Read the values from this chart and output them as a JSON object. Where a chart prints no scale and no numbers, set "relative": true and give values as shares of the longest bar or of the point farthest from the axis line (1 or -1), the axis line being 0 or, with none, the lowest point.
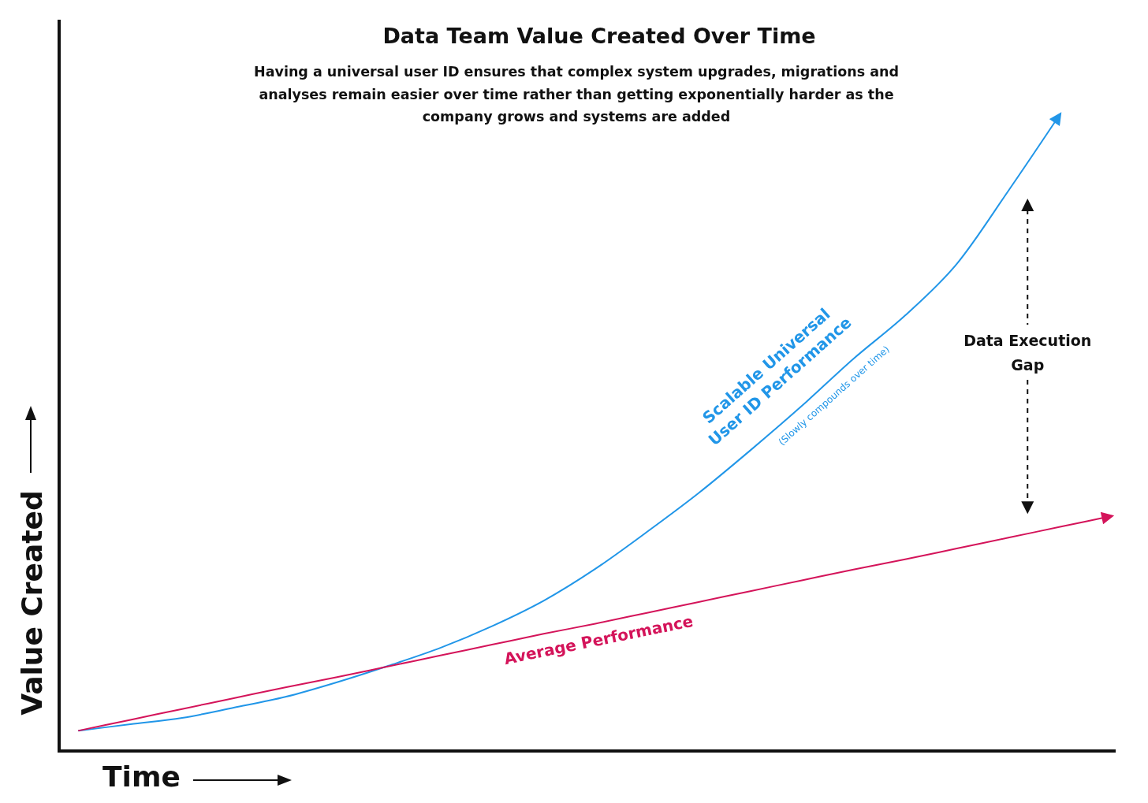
{
  "chart_data": {
    "type": "line",
    "title": "Data Team Value Created Over Time",
    "subtitle": "Having a universal user ID ensures that complex system upgrades, migrations and analyses remain easier over time rather than getting exponentially harder as the company grows and systems are added",
    "xlabel": "Time",
    "ylabel": "Value Created",
    "relative": true,
    "annotations": [
      "Data Execution Gap",
      "(Slowly compounds over time)"
    ],
    "categories": [
      null,
      null,
      null,
      null,
      null,
      null,
      null,
      null,
      null,
      null,
      null,
      null,
      null,
      null,
      null,
      null,
      null,
      null,
      null,
      null,
      null
    ],
    "series": [
      {
        "name": "Scalable Universal User ID Performance",
        "color": "#2196e8",
        "values": [
          0.032,
          0.042,
          0.052,
          0.068,
          0.085,
          0.108,
          0.134,
          0.162,
          0.196,
          0.236,
          0.286,
          0.344,
          0.405,
          0.472,
          0.542,
          0.616,
          0.684,
          0.765,
          0.88,
          1,
          null
        ]
      },
      {
        "name": "Average Performance",
        "color": "#d4145a",
        "values": [
          0.032,
          0.049,
          0.066,
          0.083,
          0.1,
          0.116,
          0.133,
          0.15,
          0.167,
          0.184,
          0.2,
          0.217,
          0.234,
          0.251,
          0.268,
          0.285,
          0.301,
          0.318,
          0.335,
          0.352,
          0.369
        ]
      }
    ]
  }
}
